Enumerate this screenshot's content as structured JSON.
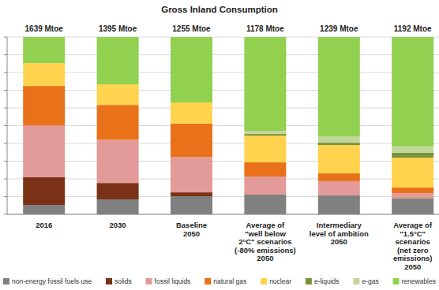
{
  "chart_data": {
    "type": "bar",
    "stacked": true,
    "title": "Gross Inland Consumption",
    "total_labels": [
      "1639 Mtoe",
      "1395 Mtoe",
      "1255 Mtoe",
      "1178 Mtoe",
      "1239 Mtoe",
      "1192 Mtoe"
    ],
    "categories": [
      "2016",
      "2030",
      "Baseline\n2050",
      "Average of\n\"well below\n2°C\" scenarios\n(-80% emissions)\n2050",
      "Intermediary\nlevel of ambition\n2050",
      "Average of\n\"1.5°C\"\nscenarios\n(net zero\nemissions)\n2050"
    ],
    "series": [
      {
        "name": "non-energy fossil fuels use",
        "color": "#808080",
        "values": [
          5.3,
          8.4,
          10.2,
          11.1,
          10.7,
          8.9
        ]
      },
      {
        "name": "solids",
        "color": "#7b3116",
        "values": [
          15.6,
          9.3,
          2.2,
          0,
          0,
          0
        ]
      },
      {
        "name": "fossil liquids",
        "color": "#e29b99",
        "values": [
          29.3,
          24.4,
          20.0,
          10.2,
          8.0,
          3.1
        ]
      },
      {
        "name": "natural gas",
        "color": "#e8711a",
        "values": [
          22.2,
          19.6,
          18.7,
          8.0,
          4.4,
          3.1
        ]
      },
      {
        "name": "nuclear",
        "color": "#ffd34d",
        "values": [
          12.9,
          11.6,
          12.0,
          15.1,
          16.0,
          16.9
        ]
      },
      {
        "name": "e-liquids",
        "color": "#77933c",
        "values": [
          0,
          0,
          0,
          0.9,
          1.3,
          2.7
        ]
      },
      {
        "name": "e-gas",
        "color": "#c3d69b",
        "values": [
          0,
          0,
          0,
          1.8,
          3.6,
          3.6
        ]
      },
      {
        "name": "renewables",
        "color": "#92d050",
        "values": [
          14.7,
          26.7,
          36.9,
          52.9,
          56.0,
          61.7
        ]
      }
    ],
    "ylim": [
      0,
      100
    ],
    "yticks": [
      0,
      10,
      20,
      30,
      40,
      50,
      60,
      70,
      80,
      90,
      100
    ],
    "grid": true,
    "tick_labels": "x",
    "legend": "bottom"
  }
}
